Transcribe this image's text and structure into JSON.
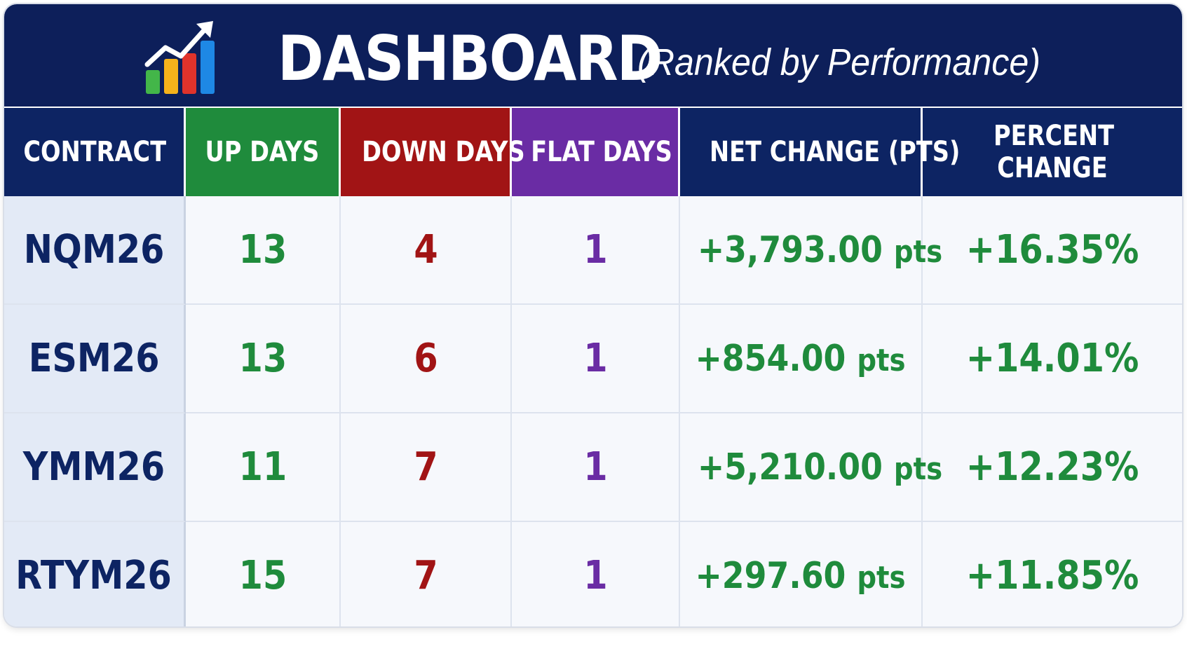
{
  "header": {
    "title": "DASHBOARD",
    "subtitle": "(Ranked by Performance)",
    "icon": "bar-chart-growth-icon"
  },
  "table": {
    "columns": [
      {
        "key": "contract",
        "label": "CONTRACT"
      },
      {
        "key": "up_days",
        "label": "UP DAYS"
      },
      {
        "key": "down_days",
        "label": "DOWN DAYS"
      },
      {
        "key": "flat_days",
        "label": "FLAT DAYS"
      },
      {
        "key": "net_change",
        "label": "NET CHANGE (PTS)"
      },
      {
        "key": "percent_change",
        "label": "PERCENT CHANGE"
      }
    ],
    "rows": [
      {
        "contract": "NQM26",
        "up_days": "13",
        "down_days": "4",
        "flat_days": "1",
        "net_change": "+3,793.00",
        "net_unit": "pts",
        "percent_change": "+16.35%"
      },
      {
        "contract": "ESM26",
        "up_days": "13",
        "down_days": "6",
        "flat_days": "1",
        "net_change": "+854.00",
        "net_unit": "pts",
        "percent_change": "+14.01%"
      },
      {
        "contract": "YMM26",
        "up_days": "11",
        "down_days": "7",
        "flat_days": "1",
        "net_change": "+5,210.00",
        "net_unit": "pts",
        "percent_change": "+12.23%"
      },
      {
        "contract": "RTYM26",
        "up_days": "15",
        "down_days": "7",
        "flat_days": "1",
        "net_change": "+297.60",
        "net_unit": "pts",
        "percent_change": "+11.85%"
      }
    ]
  },
  "colors": {
    "navy": "#0d2463",
    "banner": "#0d1f5a",
    "up_green": "#1f8b3c",
    "down_red": "#a11415",
    "flat_purple": "#6a2ca4",
    "contract_cell_bg": "#e3eaf6",
    "cell_bg": "#f6f8fc"
  }
}
